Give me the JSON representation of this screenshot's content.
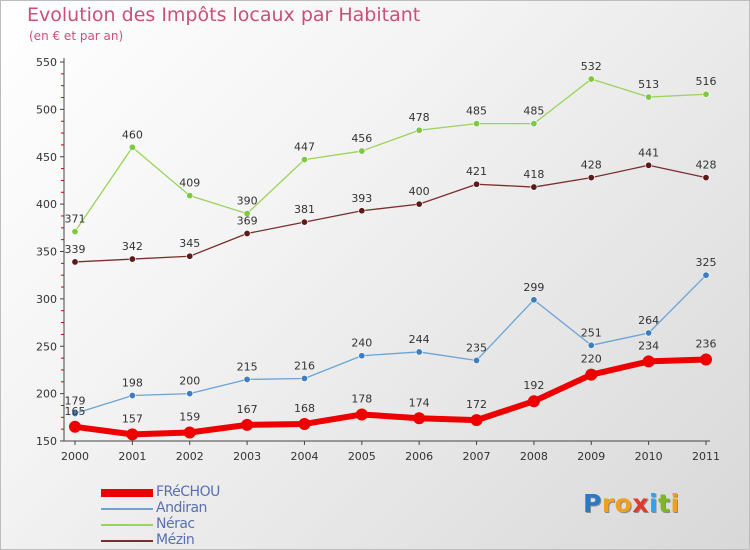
{
  "title": "Evolution des Impôts locaux par Habitant",
  "subtitle": "(en € et par an)",
  "logo": {
    "letters": [
      {
        "ch": "P",
        "color": "#2b78c8"
      },
      {
        "ch": "r",
        "color": "#f0a020"
      },
      {
        "ch": "o",
        "color": "#f0a020"
      },
      {
        "ch": "x",
        "color": "#e03a2a"
      },
      {
        "ch": "i",
        "color": "#3aa0e0"
      },
      {
        "ch": "t",
        "color": "#7ab828"
      },
      {
        "ch": "i",
        "color": "#f0a020"
      }
    ]
  },
  "chart_data": {
    "type": "line",
    "title": "Evolution des Impôts locaux par Habitant",
    "subtitle": "(en € et par an)",
    "x": [
      "2000",
      "2001",
      "2002",
      "2003",
      "2004",
      "2005",
      "2006",
      "2007",
      "2008",
      "2009",
      "2010",
      "2011"
    ],
    "ylim": [
      150,
      550
    ],
    "yticks": [
      150,
      200,
      250,
      300,
      350,
      400,
      450,
      500,
      550
    ],
    "grid": false,
    "legend_position": "bottom-left",
    "series": [
      {
        "name": "Nérac",
        "color": "#9bd35b",
        "markerColor": "#7ec843",
        "width": 1.3,
        "values": [
          371,
          460,
          409,
          390,
          447,
          456,
          478,
          485,
          485,
          532,
          513,
          516
        ]
      },
      {
        "name": "Mézin",
        "color": "#7a2e2e",
        "markerColor": "#5c1a1a",
        "width": 1.3,
        "values": [
          339,
          342,
          345,
          369,
          381,
          393,
          400,
          421,
          418,
          428,
          441,
          428
        ]
      },
      {
        "name": "Andiran",
        "color": "#6ba3d6",
        "markerColor": "#3d7dc0",
        "width": 1.3,
        "values": [
          179,
          198,
          200,
          215,
          216,
          240,
          244,
          235,
          299,
          251,
          264,
          325
        ]
      },
      {
        "name": "FRéCHOU",
        "color": "#ee0000",
        "markerColor": "#ee0000",
        "width": 6,
        "values": [
          165,
          157,
          159,
          167,
          168,
          178,
          174,
          172,
          192,
          220,
          234,
          236
        ]
      }
    ],
    "legend": [
      "FRéCHOU",
      "Andiran",
      "Nérac",
      "Mézin"
    ]
  }
}
